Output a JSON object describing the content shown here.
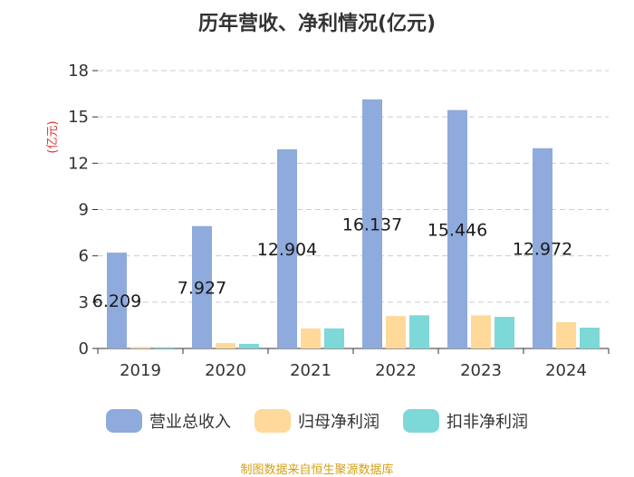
{
  "chart_data": {
    "type": "bar",
    "title": "历年营收、净利情况(亿元)",
    "ylabel": "(亿元)",
    "xlabel": "",
    "categories": [
      "2019",
      "2020",
      "2021",
      "2022",
      "2023",
      "2024"
    ],
    "ylim": [
      0,
      18
    ],
    "yticks": [
      0,
      3,
      6,
      9,
      12,
      15,
      18
    ],
    "grid": true,
    "legend_position": "bottom",
    "series": [
      {
        "name": "营业总收入",
        "color": "#8faadc",
        "values": [
          6.209,
          7.927,
          12.904,
          16.137,
          15.446,
          12.972
        ],
        "labels": [
          "6.209",
          "7.927",
          "12.904",
          "16.137",
          "15.446",
          "12.972"
        ]
      },
      {
        "name": "归母净利润",
        "color": "#ffd99a",
        "values": [
          0.1,
          0.35,
          1.3,
          2.1,
          2.15,
          1.7
        ]
      },
      {
        "name": "扣非净利润",
        "color": "#7dd8d8",
        "values": [
          0.08,
          0.3,
          1.3,
          2.15,
          2.05,
          1.35
        ]
      }
    ]
  },
  "source": "制图数据来自恒生聚源数据库"
}
